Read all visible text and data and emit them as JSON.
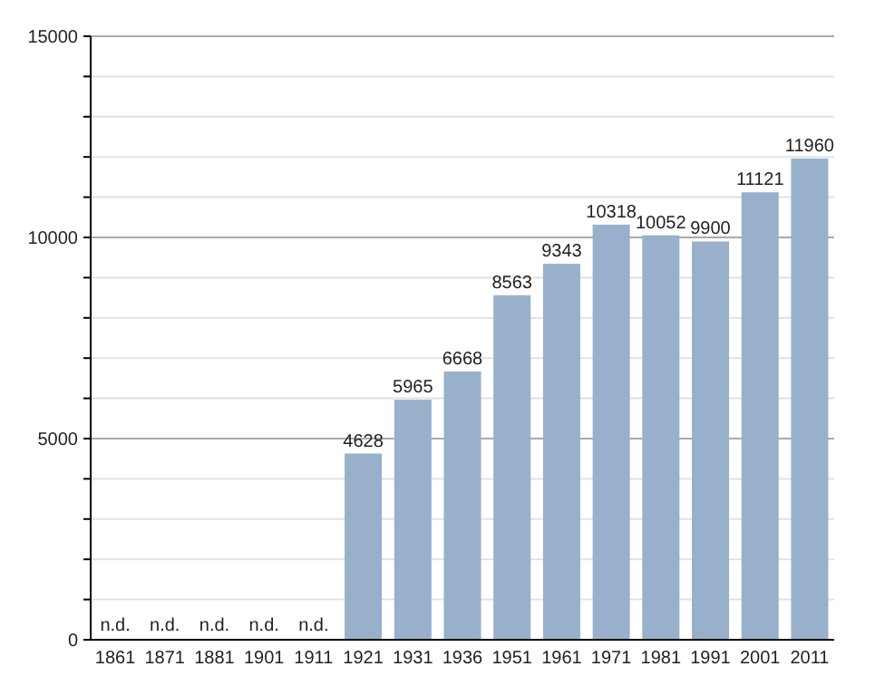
{
  "chart_data": {
    "type": "bar",
    "categories": [
      "1861",
      "1871",
      "1881",
      "1901",
      "1911",
      "1921",
      "1931",
      "1936",
      "1951",
      "1961",
      "1971",
      "1981",
      "1991",
      "2001",
      "2011"
    ],
    "values": [
      null,
      null,
      null,
      null,
      null,
      4628,
      5965,
      6668,
      8563,
      9343,
      10318,
      10052,
      9900,
      11121,
      11960
    ],
    "value_labels": [
      "n.d.",
      "n.d.",
      "n.d.",
      "n.d.",
      "n.d.",
      "4628",
      "5965",
      "6668",
      "8563",
      "9343",
      "10318",
      "10052",
      "9900",
      "11121",
      "11960"
    ],
    "color": "#98b0cc",
    "ylim": [
      0,
      15000
    ],
    "yticks": [
      0,
      {
        "value": 1000,
        "label": null
      },
      {
        "value": 2000,
        "label": null
      },
      {
        "value": 3000,
        "label": null
      },
      {
        "value": 4000,
        "label": null
      },
      5000,
      {
        "value": 6000,
        "label": null
      },
      {
        "value": 7000,
        "label": null
      },
      {
        "value": 8000,
        "label": null
      },
      {
        "value": 9000,
        "label": null
      },
      10000,
      {
        "value": 11000,
        "label": null
      },
      {
        "value": 12000,
        "label": null
      },
      {
        "value": 13000,
        "label": null
      },
      {
        "value": 14000,
        "label": null
      },
      15000
    ],
    "grid": true
  }
}
